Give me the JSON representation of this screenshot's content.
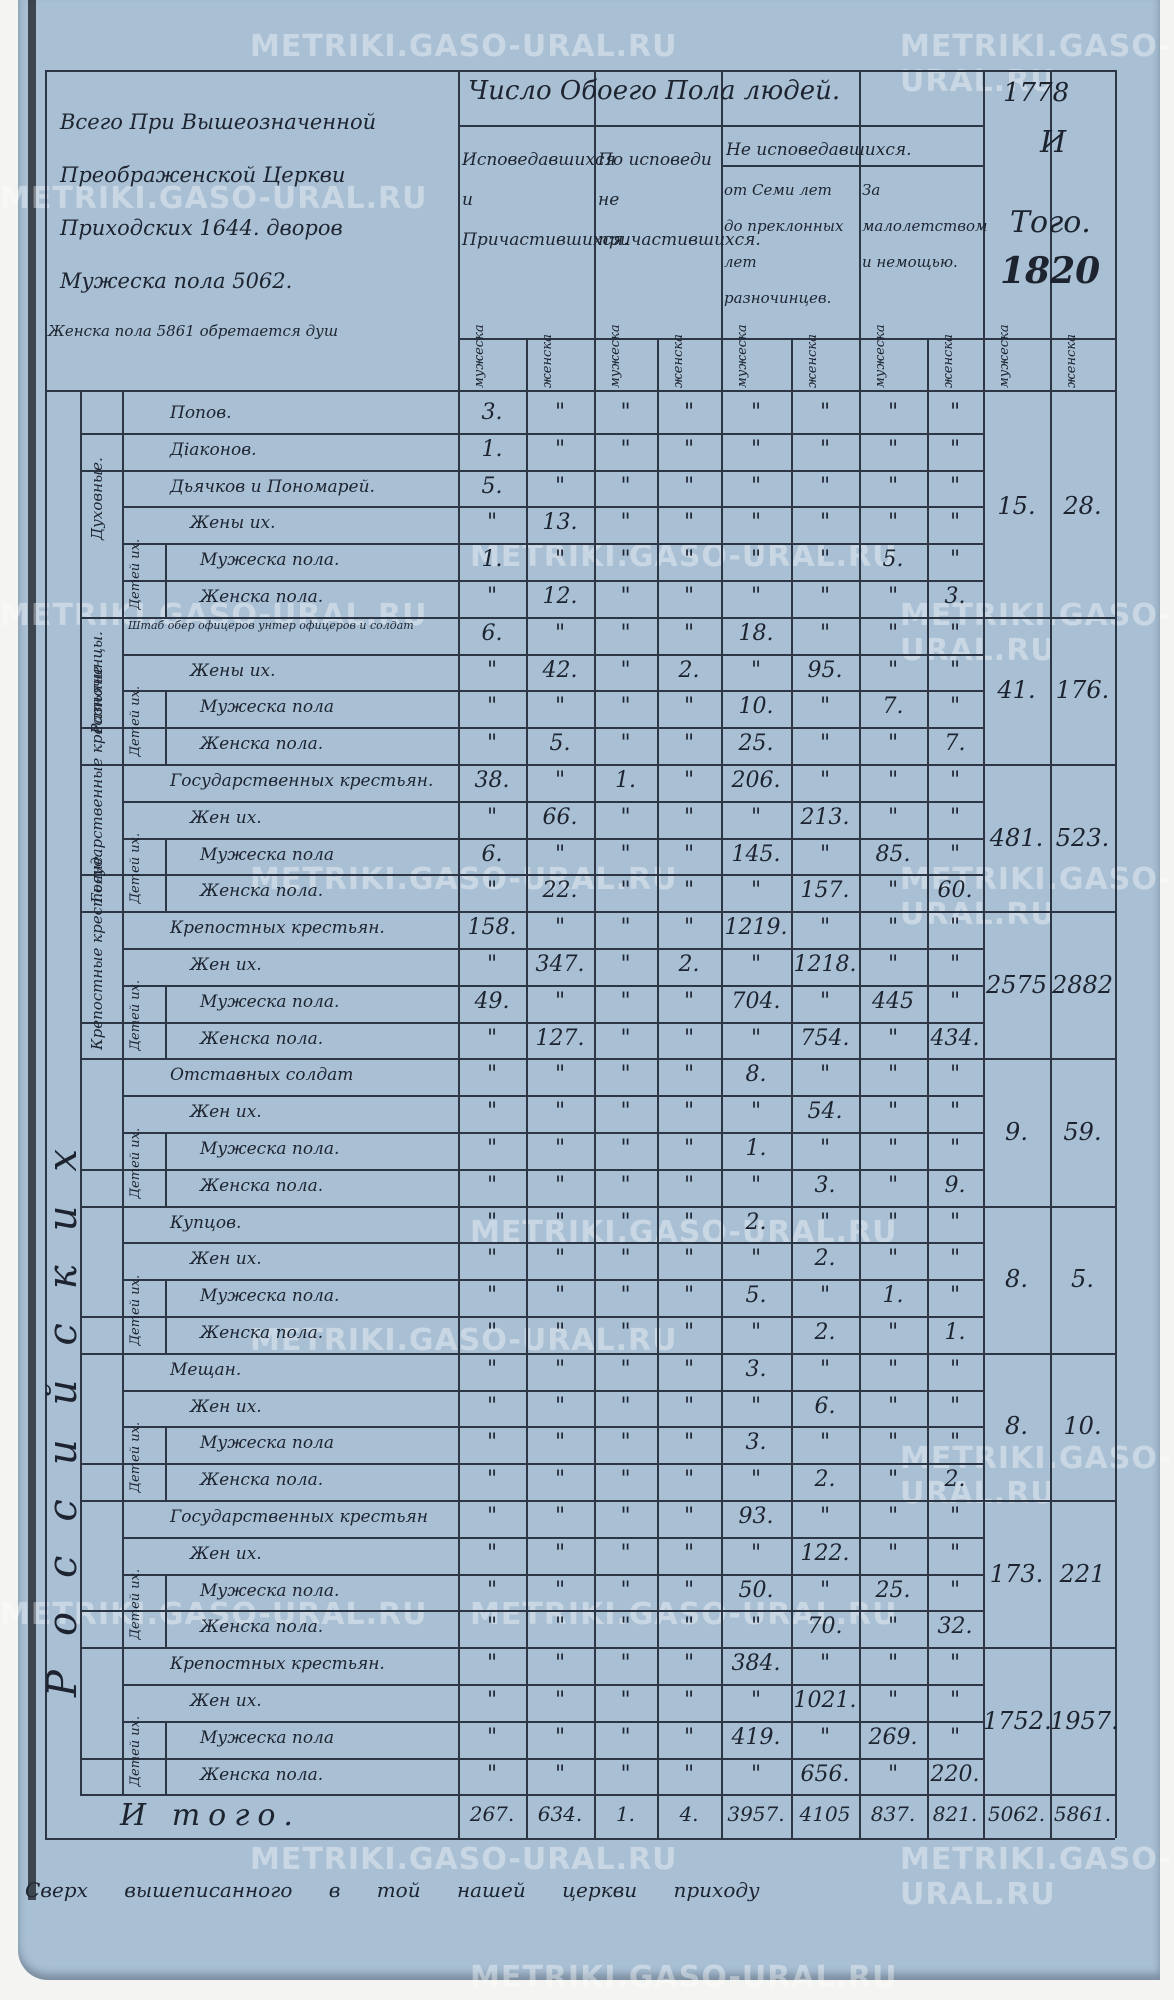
{
  "watermark": "METRIKI.GASO-URAL.RU",
  "year": {
    "label_top": "1778",
    "label_mid": "И",
    "label_bot": "Того.",
    "value": "1820"
  },
  "intro": {
    "lines": [
      "Всего При Вышеозначенной",
      "Преображенской Церкви",
      "Приходских 1644. дворов",
      "Мужеска пола 5062.",
      "Женска пола 5861 обретается душ"
    ]
  },
  "header": {
    "title": "Число Обоего Пола людей.",
    "col_groups": [
      {
        "label": "Исповедавшихся и Причастившихся."
      },
      {
        "label": "По исповеди не причастившихся."
      },
      {
        "label": "Не исповедавшихся."
      }
    ],
    "not_confessed_sub": [
      {
        "label": "от Семи лет до преклонных лет разночинцев."
      },
      {
        "label": "За малолетством и немощью."
      }
    ],
    "sex_labels": [
      "мужеска",
      "женска",
      "мужеска",
      "женска",
      "мужеска",
      "женска",
      "мужеска",
      "женска",
      "мужеска",
      "женска"
    ]
  },
  "category_labels": [
    "Духовные.",
    "Разночинцы.",
    "Государственные крестьяне",
    "Крепостные крестьяне"
  ],
  "nation_label": "Российских",
  "children_label": "Детей их.",
  "rows": [
    {
      "label": "Попов.",
      "values": [
        "3.",
        "\"",
        "\"",
        "\"",
        "\"",
        "\"",
        "\"",
        "\""
      ]
    },
    {
      "label": "Діаконов.",
      "values": [
        "1.",
        "\"",
        "\"",
        "\"",
        "\"",
        "\"",
        "\"",
        "\""
      ]
    },
    {
      "label": "Дьячков и Пономарей.",
      "values": [
        "5.",
        "\"",
        "\"",
        "\"",
        "\"",
        "\"",
        "\"",
        "\""
      ]
    },
    {
      "label": "Жены их.",
      "values": [
        "\"",
        "13.",
        "\"",
        "\"",
        "\"",
        "\"",
        "\"",
        "\""
      ]
    },
    {
      "label": "Мужеска пола.",
      "values": [
        "1.",
        "\"",
        "\"",
        "\"",
        "\"",
        "\"",
        "5.",
        "\""
      ]
    },
    {
      "label": "Женска пола.",
      "values": [
        "\"",
        "12.",
        "\"",
        "\"",
        "\"",
        "\"",
        "\"",
        "3."
      ]
    },
    {
      "label": "Штаб обер офицеров унтер офицеров и солдат",
      "values": [
        "6.",
        "\"",
        "\"",
        "\"",
        "18.",
        "\"",
        "\"",
        "\""
      ]
    },
    {
      "label": "Жены их.",
      "values": [
        "\"",
        "42.",
        "\"",
        "2.",
        "\"",
        "95.",
        "\"",
        "\""
      ]
    },
    {
      "label": "Мужеска пола",
      "values": [
        "\"",
        "\"",
        "\"",
        "\"",
        "10.",
        "\"",
        "7.",
        "\""
      ]
    },
    {
      "label": "Женска пола.",
      "values": [
        "\"",
        "5.",
        "\"",
        "\"",
        "25.",
        "\"",
        "\"",
        "7."
      ]
    },
    {
      "label": "Государственных крестьян.",
      "values": [
        "38.",
        "\"",
        "1.",
        "\"",
        "206.",
        "\"",
        "\"",
        "\""
      ]
    },
    {
      "label": "Жен их.",
      "values": [
        "\"",
        "66.",
        "\"",
        "\"",
        "\"",
        "213.",
        "\"",
        "\""
      ]
    },
    {
      "label": "Мужеска пола",
      "values": [
        "6.",
        "\"",
        "\"",
        "\"",
        "145.",
        "\"",
        "85.",
        "\""
      ]
    },
    {
      "label": "Женска пола.",
      "values": [
        "\"",
        "22.",
        "\"",
        "\"",
        "\"",
        "157.",
        "\"",
        "60."
      ]
    },
    {
      "label": "Крепостных крестьян.",
      "values": [
        "158.",
        "\"",
        "\"",
        "\"",
        "1219.",
        "\"",
        "\"",
        "\""
      ]
    },
    {
      "label": "Жен их.",
      "values": [
        "\"",
        "347.",
        "\"",
        "2.",
        "\"",
        "1218.",
        "\"",
        "\""
      ]
    },
    {
      "label": "Мужеска пола.",
      "values": [
        "49.",
        "\"",
        "\"",
        "\"",
        "704.",
        "\"",
        "445",
        "\""
      ]
    },
    {
      "label": "Женска пола.",
      "values": [
        "\"",
        "127.",
        "\"",
        "\"",
        "\"",
        "754.",
        "\"",
        "434."
      ]
    },
    {
      "label": "Отставных солдат",
      "values": [
        "\"",
        "\"",
        "\"",
        "\"",
        "8.",
        "\"",
        "\"",
        "\""
      ]
    },
    {
      "label": "Жен их.",
      "values": [
        "\"",
        "\"",
        "\"",
        "\"",
        "\"",
        "54.",
        "\"",
        "\""
      ]
    },
    {
      "label": "Мужеска пола.",
      "values": [
        "\"",
        "\"",
        "\"",
        "\"",
        "1.",
        "\"",
        "\"",
        "\""
      ]
    },
    {
      "label": "Женска пола.",
      "values": [
        "\"",
        "\"",
        "\"",
        "\"",
        "\"",
        "3.",
        "\"",
        "9."
      ]
    },
    {
      "label": "Купцов.",
      "values": [
        "\"",
        "\"",
        "\"",
        "\"",
        "2.",
        "\"",
        "\"",
        "\""
      ]
    },
    {
      "label": "Жен их.",
      "values": [
        "\"",
        "\"",
        "\"",
        "\"",
        "\"",
        "2.",
        "\"",
        "\""
      ]
    },
    {
      "label": "Мужеска пола.",
      "values": [
        "\"",
        "\"",
        "\"",
        "\"",
        "5.",
        "\"",
        "1.",
        "\""
      ]
    },
    {
      "label": "Женска пола.",
      "values": [
        "\"",
        "\"",
        "\"",
        "\"",
        "\"",
        "2.",
        "\"",
        "1."
      ]
    },
    {
      "label": "Мещан.",
      "values": [
        "\"",
        "\"",
        "\"",
        "\"",
        "3.",
        "\"",
        "\"",
        "\""
      ]
    },
    {
      "label": "Жен их.",
      "values": [
        "\"",
        "\"",
        "\"",
        "\"",
        "\"",
        "6.",
        "\"",
        "\""
      ]
    },
    {
      "label": "Мужеска пола",
      "values": [
        "\"",
        "\"",
        "\"",
        "\"",
        "3.",
        "\"",
        "\"",
        "\""
      ]
    },
    {
      "label": "Женска пола.",
      "values": [
        "\"",
        "\"",
        "\"",
        "\"",
        "\"",
        "2.",
        "\"",
        "2."
      ]
    },
    {
      "label": "Государственных крестьян",
      "values": [
        "\"",
        "\"",
        "\"",
        "\"",
        "93.",
        "\"",
        "\"",
        "\""
      ]
    },
    {
      "label": "Жен их.",
      "values": [
        "\"",
        "\"",
        "\"",
        "\"",
        "\"",
        "122.",
        "\"",
        "\""
      ]
    },
    {
      "label": "Мужеска пола.",
      "values": [
        "\"",
        "\"",
        "\"",
        "\"",
        "50.",
        "\"",
        "25.",
        "\""
      ]
    },
    {
      "label": "Женска пола.",
      "values": [
        "\"",
        "\"",
        "\"",
        "\"",
        "\"",
        "70.",
        "\"",
        "32."
      ]
    },
    {
      "label": "Крепостных крестьян.",
      "values": [
        "\"",
        "\"",
        "\"",
        "\"",
        "384.",
        "\"",
        "\"",
        "\""
      ]
    },
    {
      "label": "Жен их.",
      "values": [
        "\"",
        "\"",
        "\"",
        "\"",
        "\"",
        "1021.",
        "\"",
        "\""
      ]
    },
    {
      "label": "Мужеска пола",
      "values": [
        "\"",
        "\"",
        "\"",
        "\"",
        "419.",
        "\"",
        "269.",
        "\""
      ]
    },
    {
      "label": "Женска пола.",
      "values": [
        "\"",
        "\"",
        "\"",
        "\"",
        "\"",
        "656.",
        "\"",
        "220."
      ]
    }
  ],
  "group_totals": [
    {
      "male": "15.",
      "female": "28."
    },
    {
      "male": "41.",
      "female": "176."
    },
    {
      "male": "481.",
      "female": "523."
    },
    {
      "male": "2575",
      "female": "2882"
    },
    {
      "male": "9.",
      "female": "59."
    },
    {
      "male": "8.",
      "female": "5."
    },
    {
      "male": "8.",
      "female": "10."
    },
    {
      "male": "173.",
      "female": "221"
    },
    {
      "male": "1752.",
      "female": "1957."
    }
  ],
  "total": {
    "label": "И того.",
    "values": [
      "267.",
      "634.",
      "1.",
      "4.",
      "3957.",
      "4105",
      "837.",
      "821.",
      "5062.",
      "5861."
    ]
  },
  "footer": "Сверх вышеписанного в той нашей церкви приходу"
}
